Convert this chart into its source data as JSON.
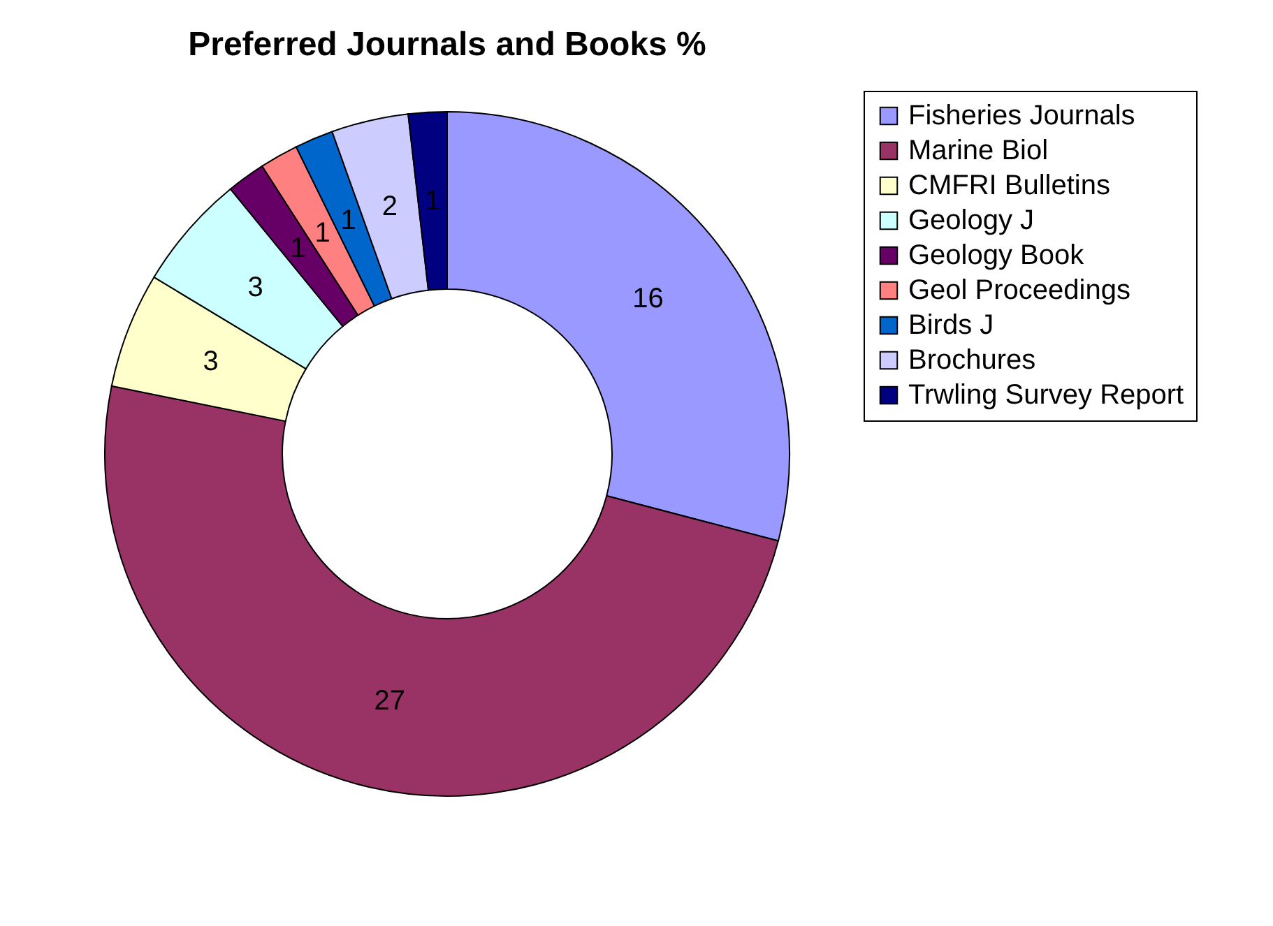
{
  "chart_data": {
    "type": "donut",
    "title": "Preferred Journals and Books %",
    "categories": [
      "Fisheries Journals",
      "Marine Biol",
      "CMFRI Bulletins",
      "Geology J",
      "Geology Book",
      "Geol Proceedings",
      "Birds J",
      "Brochures",
      "Trwling Survey Report"
    ],
    "values": [
      16,
      27,
      3,
      3,
      1,
      1,
      1,
      2,
      1
    ],
    "colors": [
      "#9999ff",
      "#993366",
      "#ffffcc",
      "#ccffff",
      "#660066",
      "#ff8080",
      "#0066cc",
      "#ccccff",
      "#000080"
    ],
    "data_labels": true,
    "legend": "right"
  }
}
